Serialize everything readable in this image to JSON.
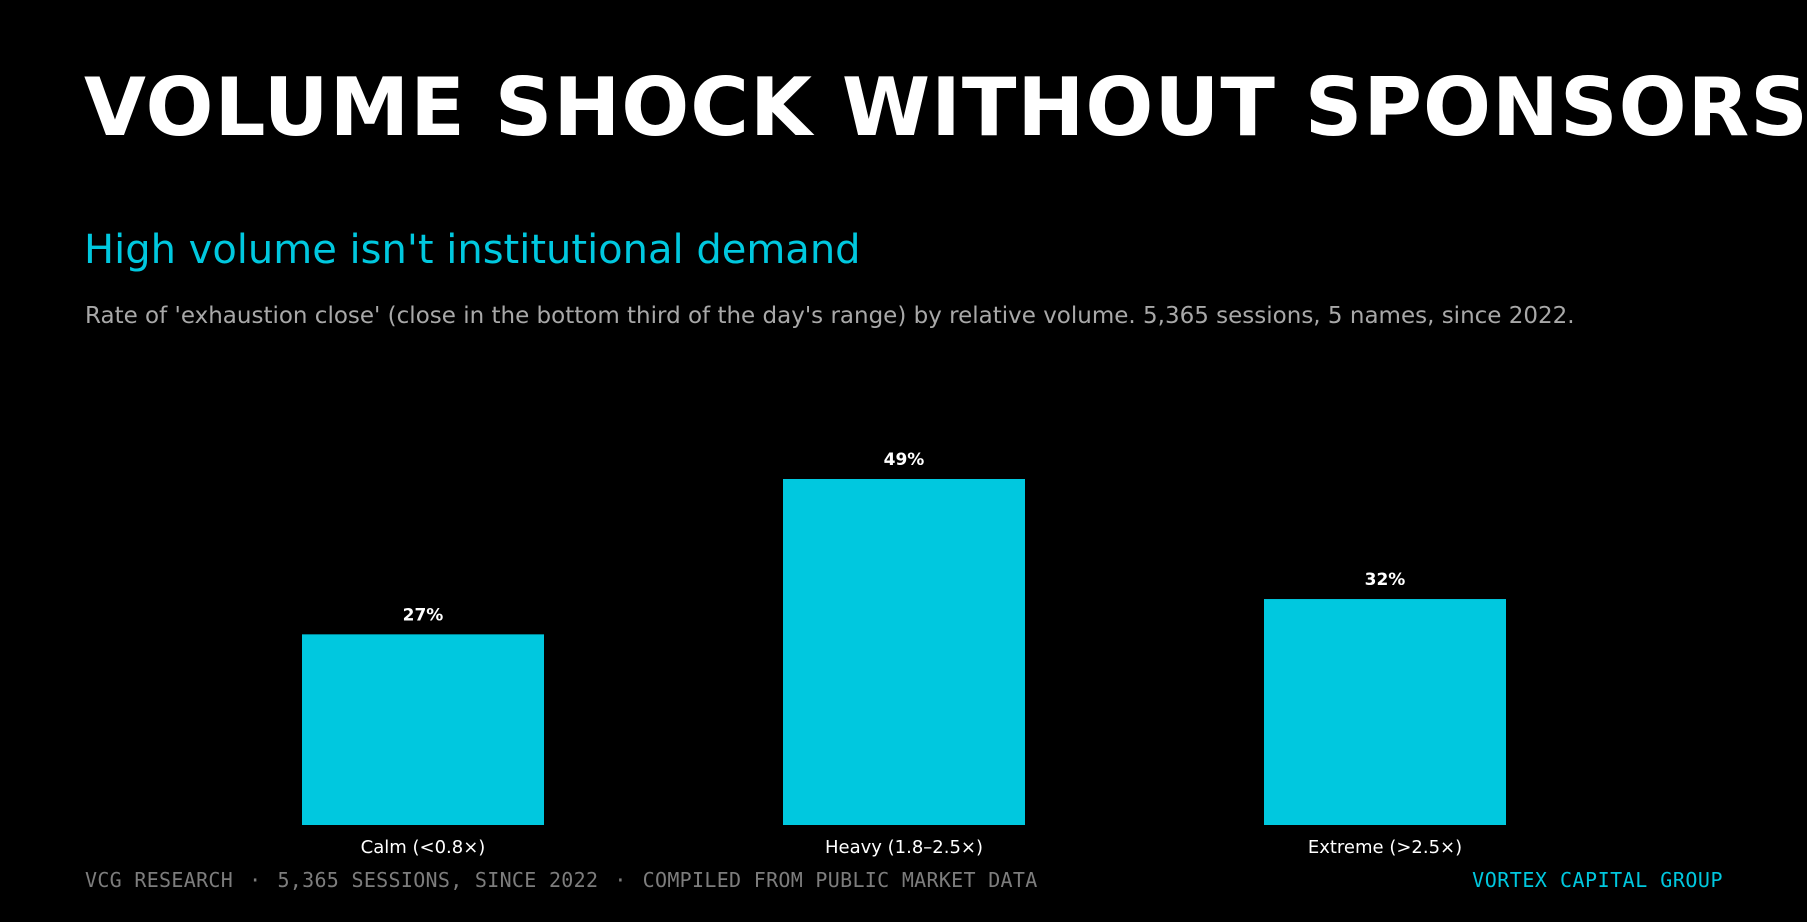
{
  "header": {
    "title": "VOLUME SHOCK WITHOUT SPONSORS",
    "subtitle": "High volume isn't institutional demand",
    "caption": "Rate of 'exhaustion close' (close in the bottom third of the day's range) by relative volume. 5,365 sessions, 5 names, since 2022."
  },
  "colors": {
    "background": "#000000",
    "bar": "#00c8df",
    "accent": "#00c8df",
    "title": "#ffffff",
    "caption": "#a8a8a8",
    "footer": "#7d7d7d"
  },
  "chart_data": {
    "type": "bar",
    "categories": [
      "Calm (<0.8×)",
      "Heavy (1.8–2.5×)",
      "Extreme (>2.5×)"
    ],
    "values": [
      27,
      49,
      32
    ],
    "value_labels": [
      "27%",
      "49%",
      "32%"
    ],
    "unit": "%",
    "ylim": [
      0,
      55
    ],
    "grid": false,
    "legend": "none"
  },
  "footer": {
    "left_items": [
      "VCG RESEARCH",
      "5,365 SESSIONS, SINCE 2022",
      "COMPILED FROM PUBLIC MARKET DATA"
    ],
    "separator": "·",
    "brand": "VORTEX CAPITAL GROUP"
  }
}
